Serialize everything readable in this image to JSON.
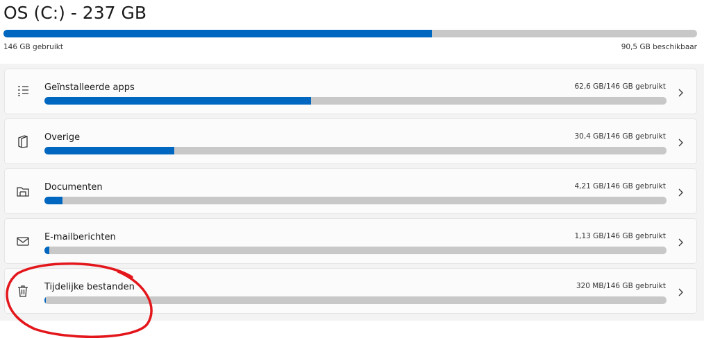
{
  "header": {
    "title": "OS (C:) - 237 GB",
    "used_label": "146 GB gebruikt",
    "free_label": "90,5 GB beschikbaar",
    "used": 146,
    "free": 90.5
  },
  "items": [
    {
      "label": "Geïnstalleerde apps",
      "usage": "62,6 GB/146 GB gebruikt",
      "used": 62.6,
      "total": 146
    },
    {
      "label": "Overige",
      "usage": "30,4 GB/146 GB gebruikt",
      "used": 30.4,
      "total": 146
    },
    {
      "label": "Documenten",
      "usage": "4,21 GB/146 GB gebruikt",
      "used": 4.21,
      "total": 146
    },
    {
      "label": "E-mailberichten",
      "usage": "1,13 GB/146 GB gebruikt",
      "used": 1.13,
      "total": 146
    },
    {
      "label": "Tijdelijke bestanden",
      "usage": "320 MB/146 GB gebruikt",
      "used": 0.32,
      "total": 146
    }
  ]
}
